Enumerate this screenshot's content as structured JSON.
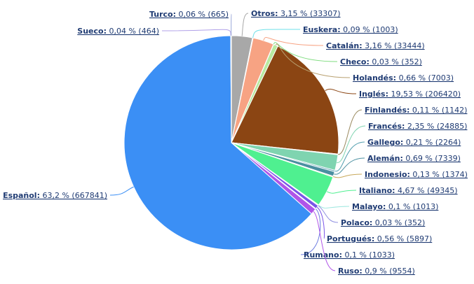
{
  "chart_data": {
    "type": "pie",
    "title": "",
    "grid": false,
    "legend": "none",
    "slices": [
      {
        "name": "Otros",
        "pct_label": "3,15 %",
        "count_label": "(33307)",
        "value": 33307,
        "color": "#a8a8a8",
        "line": "#a8a8a8"
      },
      {
        "name": "Euskera",
        "pct_label": "0,09 %",
        "count_label": "(1003)",
        "value": 1003,
        "color": "#6ee0e8",
        "line": "#6ee0e8"
      },
      {
        "name": "Catalán",
        "pct_label": "3,16 %",
        "count_label": "(33444)",
        "value": 33444,
        "color": "#f7a383",
        "line": "#f7a383"
      },
      {
        "name": "Checo",
        "pct_label": "0,03 %",
        "count_label": "(352)",
        "value": 352,
        "color": "#90ee90",
        "line": "#7fdc7f"
      },
      {
        "name": "Holandés",
        "pct_label": "0,66 %",
        "count_label": "(7003)",
        "value": 7003,
        "color": "#b8eaa0",
        "line": "#b8a070"
      },
      {
        "name": "Inglés",
        "pct_label": "19,53 %",
        "count_label": "(206420)",
        "value": 206420,
        "color": "#8b4513",
        "line": "#8b4513"
      },
      {
        "name": "Finlandés",
        "pct_label": "0,11 %",
        "count_label": "(1142)",
        "value": 1142,
        "color": "#9a8a60",
        "line": "#9a8a60"
      },
      {
        "name": "Francés",
        "pct_label": "2,35 %",
        "count_label": "(24885)",
        "value": 24885,
        "color": "#7fd4b0",
        "line": "#7fd4b0"
      },
      {
        "name": "Gallego",
        "pct_label": "0,21 %",
        "count_label": "(2264)",
        "value": 2264,
        "color": "#55a0b0",
        "line": "#55a0b0"
      },
      {
        "name": "Alemán",
        "pct_label": "0,69 %",
        "count_label": "(7339)",
        "value": 7339,
        "color": "#4a8fa0",
        "line": "#4a8fa0"
      },
      {
        "name": "Indonesio",
        "pct_label": "0,13 %",
        "count_label": "(1374)",
        "value": 1374,
        "color": "#c8a85a",
        "line": "#c8a85a"
      },
      {
        "name": "Italiano",
        "pct_label": "4,67 %",
        "count_label": "(49345)",
        "value": 49345,
        "color": "#4ff090",
        "line": "#4ff090"
      },
      {
        "name": "Malayo",
        "pct_label": "0,1 %",
        "count_label": "(1013)",
        "value": 1013,
        "color": "#a0e8e0",
        "line": "#a0e8e0"
      },
      {
        "name": "Polaco",
        "pct_label": "0,03 %",
        "count_label": "(352)",
        "value": 352,
        "color": "#9090e0",
        "line": "#9090e0"
      },
      {
        "name": "Portugués",
        "pct_label": "0,56 %",
        "count_label": "(5897)",
        "value": 5897,
        "color": "#7a55e8",
        "line": "#7a55e8"
      },
      {
        "name": "Rumano",
        "pct_label": "0,1 %",
        "count_label": "(1033)",
        "value": 1033,
        "color": "#6a7ae0",
        "line": "#6a7ae0"
      },
      {
        "name": "Ruso",
        "pct_label": "0,9 %",
        "count_label": "(9554)",
        "value": 9554,
        "color": "#b055e8",
        "line": "#b055e8"
      },
      {
        "name": "Español",
        "pct_label": "63,2 %",
        "count_label": "(667841)",
        "value": 667841,
        "color": "#3b8ff5",
        "line": "#3b8ff5"
      },
      {
        "name": "Sueco",
        "pct_label": "0,04 %",
        "count_label": "(464)",
        "value": 464,
        "color": "#b0a0e8",
        "line": "#b0a0e8"
      },
      {
        "name": "Turco",
        "pct_label": "0,06 %",
        "count_label": "(665)",
        "value": 665,
        "color": "#9aa8d8",
        "line": "#9aa8d8"
      }
    ]
  }
}
